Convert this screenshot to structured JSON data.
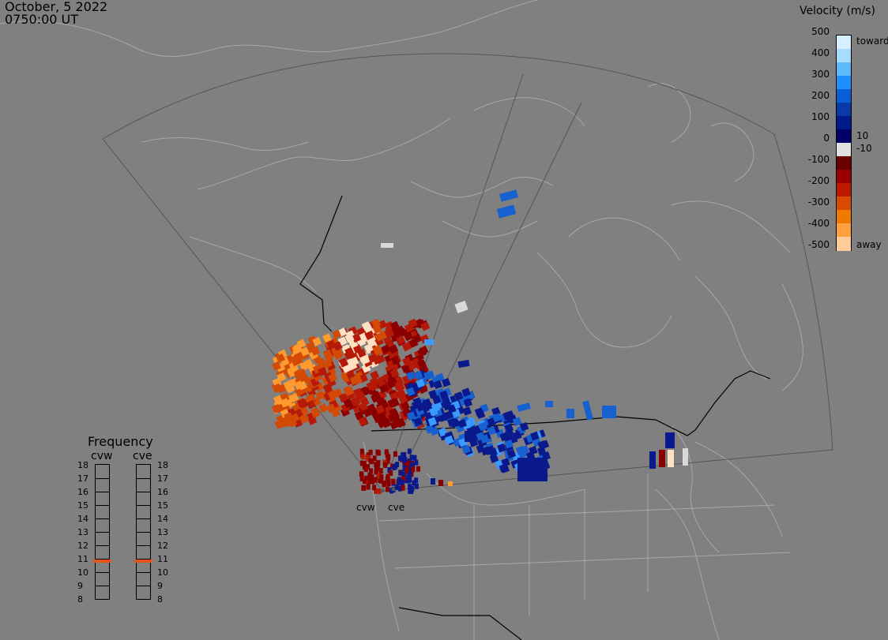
{
  "header": {
    "date": "October, 5 2022",
    "time": "0750:00 UT"
  },
  "colorbar": {
    "title": "Velocity (m/s)",
    "ticks": [
      "500",
      "400",
      "300",
      "200",
      "100",
      "0",
      "-100",
      "-200",
      "-300",
      "-400",
      "-500"
    ],
    "near_zero_labels": [
      "10",
      "-10"
    ],
    "toward_label": "toward",
    "away_label": "away",
    "colors": [
      "#d6f0ff",
      "#a8dcff",
      "#5cbaff",
      "#1f8eff",
      "#0a5fd6",
      "#0a3aa8",
      "#001a8c",
      "#000066",
      "#e0e0e0",
      "#6b0000",
      "#9a0000",
      "#bf1a00",
      "#d94a00",
      "#f07a00",
      "#ffa040",
      "#ffcc99"
    ]
  },
  "frequency": {
    "title": "Frequency",
    "radars": [
      "cvw",
      "cve"
    ],
    "scale_labels": [
      "18",
      "17",
      "16",
      "15",
      "14",
      "13",
      "12",
      "11",
      "10",
      "9",
      "8"
    ],
    "cvw_freq": 10.8,
    "cve_freq": 10.8,
    "marker_color": "#e4541a"
  },
  "sites": {
    "west": "cvw",
    "east": "cve"
  },
  "scatter_colors": {
    "away_far": "#ffe0c2",
    "away_mid": "#ff9a2e",
    "away_near": "#d24a06",
    "away_red": "#b51a08",
    "away_dark": "#8a0000",
    "toward_dark": "#0a1a8c",
    "toward_mid": "#1760d0",
    "toward_light": "#3a9aff",
    "ground": "#d8d8d8"
  }
}
